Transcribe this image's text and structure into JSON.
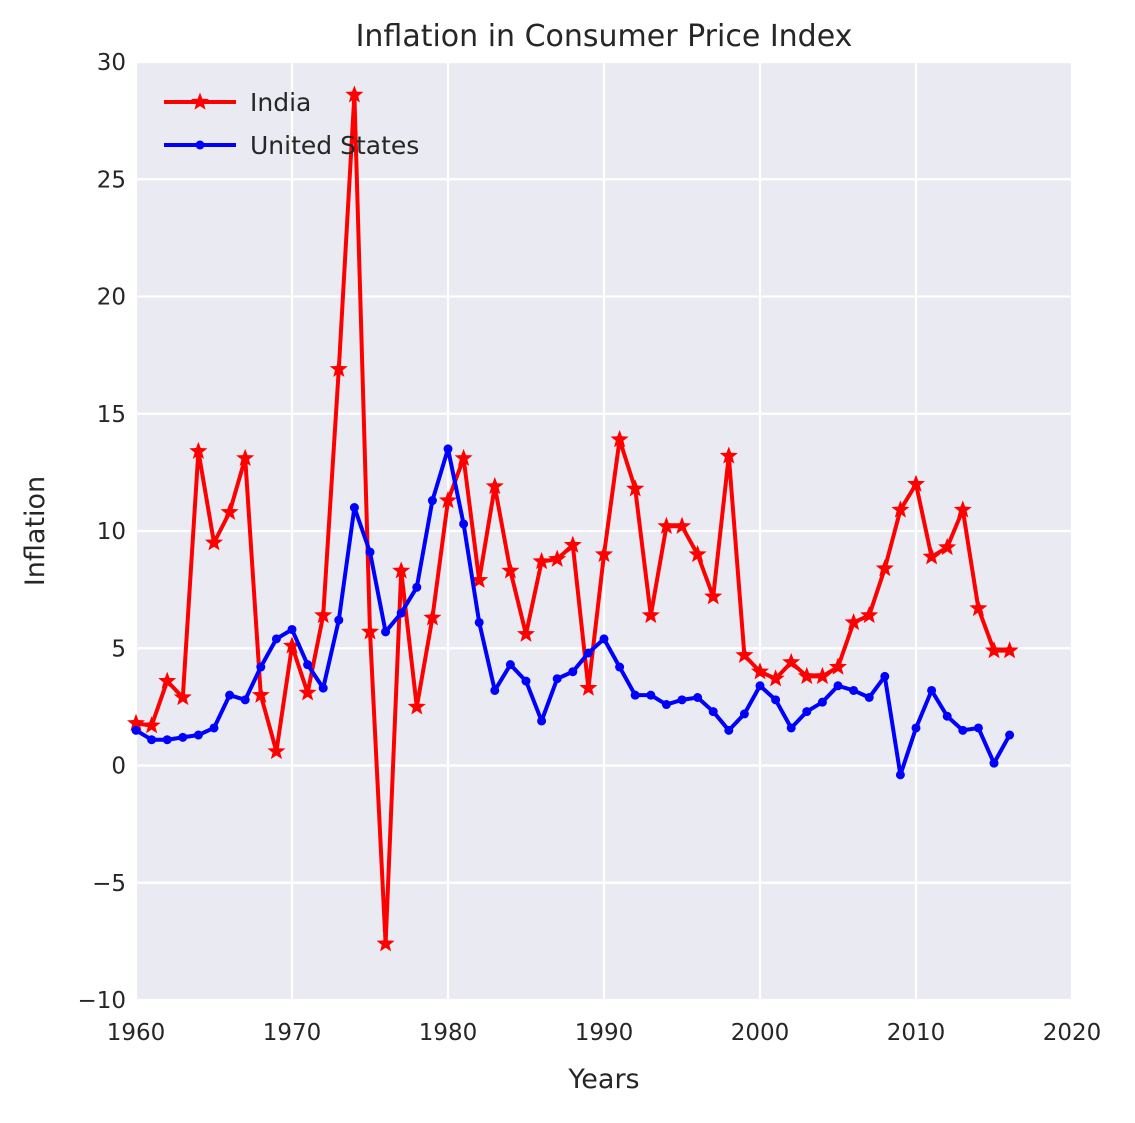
{
  "chart_data": {
    "type": "line",
    "title": "Inflation in Consumer Price Index",
    "xlabel": "Years",
    "ylabel": "Inflation",
    "xlim": [
      1960,
      2020
    ],
    "ylim": [
      -10,
      30
    ],
    "xticks": [
      1960,
      1970,
      1980,
      1990,
      2000,
      2010,
      2020
    ],
    "yticks": [
      -10,
      -5,
      0,
      5,
      10,
      15,
      20,
      25,
      30
    ],
    "ytick_labels": [
      "−10",
      "−5",
      "0",
      "5",
      "10",
      "15",
      "20",
      "25",
      "30"
    ],
    "grid": true,
    "legend_position": "top-left",
    "background_color": "#eaeaf2",
    "series": [
      {
        "name": "India",
        "color": "#ff0000",
        "marker": "star",
        "x": [
          1960,
          1961,
          1962,
          1963,
          1964,
          1965,
          1966,
          1967,
          1968,
          1969,
          1970,
          1971,
          1972,
          1973,
          1974,
          1975,
          1976,
          1977,
          1978,
          1979,
          1980,
          1981,
          1982,
          1983,
          1984,
          1985,
          1986,
          1987,
          1988,
          1989,
          1990,
          1991,
          1992,
          1993,
          1994,
          1995,
          1996,
          1997,
          1998,
          1999,
          2000,
          2001,
          2002,
          2003,
          2004,
          2005,
          2006,
          2007,
          2008,
          2009,
          2010,
          2011,
          2012,
          2013,
          2014,
          2015,
          2016
        ],
        "values": [
          1.8,
          1.7,
          3.6,
          2.9,
          13.4,
          9.5,
          10.8,
          13.1,
          3.0,
          0.6,
          5.1,
          3.1,
          6.4,
          16.9,
          28.6,
          5.7,
          -7.6,
          8.3,
          2.5,
          6.3,
          11.3,
          13.1,
          7.9,
          11.9,
          8.3,
          5.6,
          8.7,
          8.8,
          9.4,
          3.3,
          9.0,
          13.9,
          11.8,
          6.4,
          10.2,
          10.2,
          9.0,
          7.2,
          13.2,
          4.7,
          4.0,
          3.7,
          4.4,
          3.8,
          3.8,
          4.2,
          6.1,
          6.4,
          8.4,
          10.9,
          12.0,
          8.9,
          9.3,
          10.9,
          6.7,
          4.9,
          4.9
        ]
      },
      {
        "name": "United States",
        "color": "#0000ff",
        "marker": "dot",
        "x": [
          1960,
          1961,
          1962,
          1963,
          1964,
          1965,
          1966,
          1967,
          1968,
          1969,
          1970,
          1971,
          1972,
          1973,
          1974,
          1975,
          1976,
          1977,
          1978,
          1979,
          1980,
          1981,
          1982,
          1983,
          1984,
          1985,
          1986,
          1987,
          1988,
          1989,
          1990,
          1991,
          1992,
          1993,
          1994,
          1995,
          1996,
          1997,
          1998,
          1999,
          2000,
          2001,
          2002,
          2003,
          2004,
          2005,
          2006,
          2007,
          2008,
          2009,
          2010,
          2011,
          2012,
          2013,
          2014,
          2015,
          2016
        ],
        "values": [
          1.5,
          1.1,
          1.1,
          1.2,
          1.3,
          1.6,
          3.0,
          2.8,
          4.2,
          5.4,
          5.8,
          4.3,
          3.3,
          6.2,
          11.0,
          9.1,
          5.7,
          6.5,
          7.6,
          11.3,
          13.5,
          10.3,
          6.1,
          3.2,
          4.3,
          3.6,
          1.9,
          3.7,
          4.0,
          4.8,
          5.4,
          4.2,
          3.0,
          3.0,
          2.6,
          2.8,
          2.9,
          2.3,
          1.5,
          2.2,
          3.4,
          2.8,
          1.6,
          2.3,
          2.7,
          3.4,
          3.2,
          2.9,
          3.8,
          -0.4,
          1.6,
          3.2,
          2.1,
          1.5,
          1.6,
          0.1,
          1.3
        ]
      }
    ]
  }
}
